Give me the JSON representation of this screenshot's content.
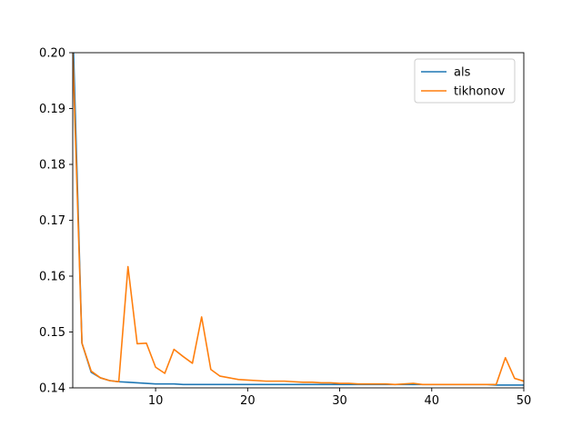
{
  "chart_data": {
    "type": "line",
    "title": "",
    "xlabel": "",
    "ylabel": "",
    "xlim": [
      1,
      50
    ],
    "ylim": [
      0.14,
      0.2
    ],
    "xticks": [
      10,
      20,
      30,
      40,
      50
    ],
    "yticks": [
      0.14,
      0.15,
      0.16,
      0.17,
      0.18,
      0.19,
      0.2
    ],
    "ytick_labels": [
      "0.14",
      "0.15",
      "0.16",
      "0.17",
      "0.18",
      "0.19",
      "0.20"
    ],
    "grid": false,
    "legend_position": "top-right",
    "x": [
      1,
      2,
      3,
      4,
      5,
      6,
      7,
      8,
      9,
      10,
      11,
      12,
      13,
      14,
      15,
      16,
      17,
      18,
      19,
      20,
      21,
      22,
      23,
      24,
      25,
      26,
      27,
      28,
      29,
      30,
      31,
      32,
      33,
      34,
      35,
      36,
      37,
      38,
      39,
      40,
      41,
      42,
      43,
      44,
      45,
      46,
      47,
      48,
      49,
      50
    ],
    "series": [
      {
        "name": "als",
        "color": "#1f77b4",
        "values": [
          0.205,
          0.148,
          0.1428,
          0.1418,
          0.1413,
          0.1411,
          0.141,
          0.1409,
          0.1408,
          0.1407,
          0.1407,
          0.1407,
          0.1406,
          0.1406,
          0.1406,
          0.1406,
          0.1406,
          0.1406,
          0.1406,
          0.1406,
          0.1406,
          0.1406,
          0.1406,
          0.1406,
          0.1406,
          0.1406,
          0.1406,
          0.1406,
          0.1406,
          0.1406,
          0.1406,
          0.1406,
          0.1406,
          0.1406,
          0.1406,
          0.1406,
          0.1406,
          0.1406,
          0.1406,
          0.1406,
          0.1406,
          0.1406,
          0.1406,
          0.1406,
          0.1406,
          0.1406,
          0.1405,
          0.1405,
          0.1405,
          0.1405
        ]
      },
      {
        "name": "tikhonov",
        "color": "#ff7f0e",
        "values": [
          0.2,
          0.148,
          0.143,
          0.1418,
          0.1413,
          0.1411,
          0.1617,
          0.1479,
          0.148,
          0.1437,
          0.1426,
          0.1469,
          0.1456,
          0.1444,
          0.1527,
          0.1433,
          0.1421,
          0.1418,
          0.1415,
          0.1414,
          0.1413,
          0.1412,
          0.1412,
          0.1412,
          0.1411,
          0.141,
          0.141,
          0.1409,
          0.1409,
          0.1408,
          0.1408,
          0.1407,
          0.1407,
          0.1407,
          0.1407,
          0.1406,
          0.1407,
          0.1408,
          0.1406,
          0.1406,
          0.1406,
          0.1406,
          0.1406,
          0.1406,
          0.1406,
          0.1406,
          0.1406,
          0.1454,
          0.1417,
          0.1412
        ]
      }
    ]
  }
}
